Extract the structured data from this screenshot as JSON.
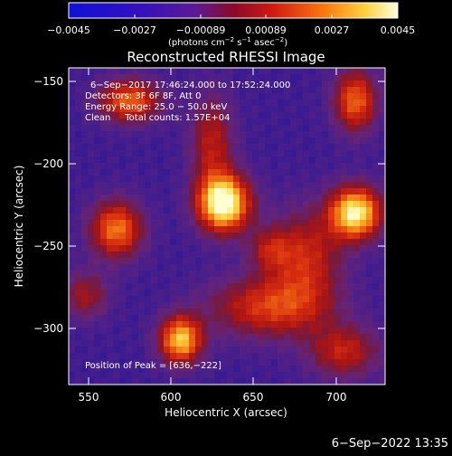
{
  "colorbar": {
    "tick_labels": [
      "−0.0045",
      "−0.0027",
      "−0.00089",
      "0.00089",
      "0.0027",
      "0.0045"
    ],
    "units_main": "(photons cm",
    "units_sup1": "−2",
    "units_mid1": " s",
    "units_sup2": "−1",
    "units_mid2": " asec",
    "units_sup3": "−2",
    "units_end": ")"
  },
  "plot": {
    "title": "Reconstructed RHESSI Image",
    "xlabel": "Heliocentric X (arcsec)",
    "ylabel": "Heliocentric Y (arcsec)",
    "x_ticks": [
      "550",
      "600",
      "650",
      "700"
    ],
    "y_ticks": [
      "−150",
      "−200",
      "−250",
      "−300"
    ],
    "xlim": [
      538,
      730
    ],
    "ylim": [
      -332,
      -140
    ]
  },
  "annotations": {
    "time_range": "6−Sep−2017 17:46:24.000 to 17:52:24.000",
    "detectors": "Detectors: 3F 6F 8F, Att 0",
    "energy": "Energy Range: 25.0 − 50.0 keV",
    "method": "Clean     Total counts: 1.57E+04",
    "peak": "Position of Peak = [636,−222]"
  },
  "footer": {
    "timestamp": "6−Sep−2022 13:35"
  },
  "map_sources": [
    {
      "x": 632,
      "y": -222,
      "amp": 1.0,
      "sx": 11,
      "sy": 12
    },
    {
      "x": 712,
      "y": -228,
      "amp": 0.9,
      "sx": 11,
      "sy": 11
    },
    {
      "x": 567,
      "y": -238,
      "amp": 0.62,
      "sx": 11,
      "sy": 12
    },
    {
      "x": 606,
      "y": -305,
      "amp": 0.78,
      "sx": 9,
      "sy": 10
    },
    {
      "x": 575,
      "y": -160,
      "amp": 0.58,
      "sx": 13,
      "sy": 9
    },
    {
      "x": 712,
      "y": -160,
      "amp": 0.58,
      "sx": 9,
      "sy": 13
    },
    {
      "x": 660,
      "y": -285,
      "amp": 0.48,
      "sx": 25,
      "sy": 13
    },
    {
      "x": 682,
      "y": -255,
      "amp": 0.42,
      "sx": 15,
      "sy": 20
    },
    {
      "x": 705,
      "y": -312,
      "amp": 0.4,
      "sx": 15,
      "sy": 11
    },
    {
      "x": 625,
      "y": -185,
      "amp": 0.38,
      "sx": 9,
      "sy": 20
    },
    {
      "x": 548,
      "y": -278,
      "amp": 0.32,
      "sx": 10,
      "sy": 10
    },
    {
      "x": 660,
      "y": -250,
      "amp": 0.3,
      "sx": 9,
      "sy": 9
    }
  ]
}
